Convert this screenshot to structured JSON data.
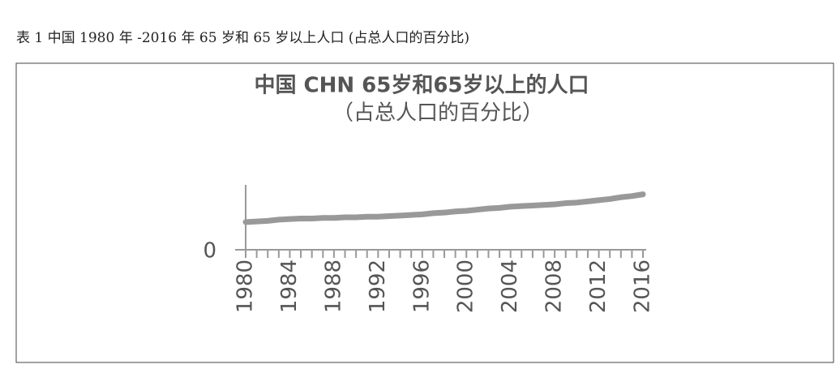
{
  "caption": "表 1 中国 1980 年 -2016 年 65 岁和 65 岁以上人口 (占总人口的百分比)",
  "chart_data": {
    "type": "line",
    "title": "中国  CHN 65岁和65岁以上的人口",
    "subtitle": "（占总人口的百分比）",
    "x": [
      1980,
      1981,
      1982,
      1983,
      1984,
      1985,
      1986,
      1987,
      1988,
      1989,
      1990,
      1991,
      1992,
      1993,
      1994,
      1995,
      1996,
      1997,
      1998,
      1999,
      2000,
      2001,
      2002,
      2003,
      2004,
      2005,
      2006,
      2007,
      2008,
      2009,
      2010,
      2011,
      2012,
      2013,
      2014,
      2015,
      2016
    ],
    "series": [
      {
        "color": "#999999",
        "values": [
          4.7,
          4.8,
          4.9,
          5.1,
          5.2,
          5.3,
          5.3,
          5.4,
          5.4,
          5.5,
          5.5,
          5.6,
          5.6,
          5.7,
          5.8,
          5.9,
          6.0,
          6.2,
          6.3,
          6.5,
          6.6,
          6.8,
          7.0,
          7.1,
          7.3,
          7.4,
          7.5,
          7.6,
          7.7,
          7.9,
          8.0,
          8.2,
          8.4,
          8.6,
          8.9,
          9.1,
          9.4
        ]
      }
    ],
    "xlim": [
      1980,
      2016
    ],
    "xticks": [
      1980,
      1984,
      1988,
      1992,
      1996,
      2000,
      2004,
      2008,
      2012,
      2016
    ],
    "ylim": [
      0,
      11
    ],
    "yticks": [
      0
    ],
    "grid": false
  }
}
